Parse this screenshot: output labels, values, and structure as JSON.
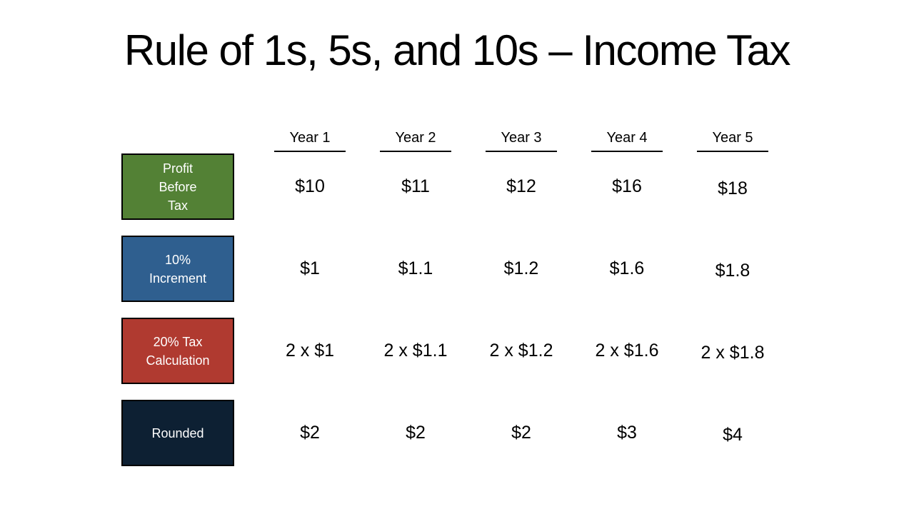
{
  "slide": {
    "title": "Rule of 1s, 5s, and 10s – Income Tax",
    "background_color": "#FFFFFF",
    "text_color": "#000000",
    "underline_color": "#000000"
  },
  "table": {
    "columns": [
      "Year 1",
      "Year 2",
      "Year 3",
      "Year 4",
      "Year 5"
    ],
    "rows": [
      {
        "label": "Profit\nBefore\nTax",
        "color": "#538135",
        "values": [
          "$10",
          "$11",
          "$12",
          "$16",
          "$18"
        ]
      },
      {
        "label": "10%\nIncrement",
        "color": "#2F5F8F",
        "values": [
          "$1",
          "$1.1",
          "$1.2",
          "$1.6",
          "$1.8"
        ]
      },
      {
        "label": "20% Tax\nCalculation",
        "color": "#B03A30",
        "values": [
          "2 x $1",
          "2 x $1.1",
          "2 x $1.2",
          "2 x $1.6",
          "2 x $1.8"
        ]
      },
      {
        "label": "Rounded",
        "color": "#0D2033",
        "values": [
          "$2",
          "$2",
          "$2",
          "$3",
          "$4"
        ]
      }
    ]
  }
}
